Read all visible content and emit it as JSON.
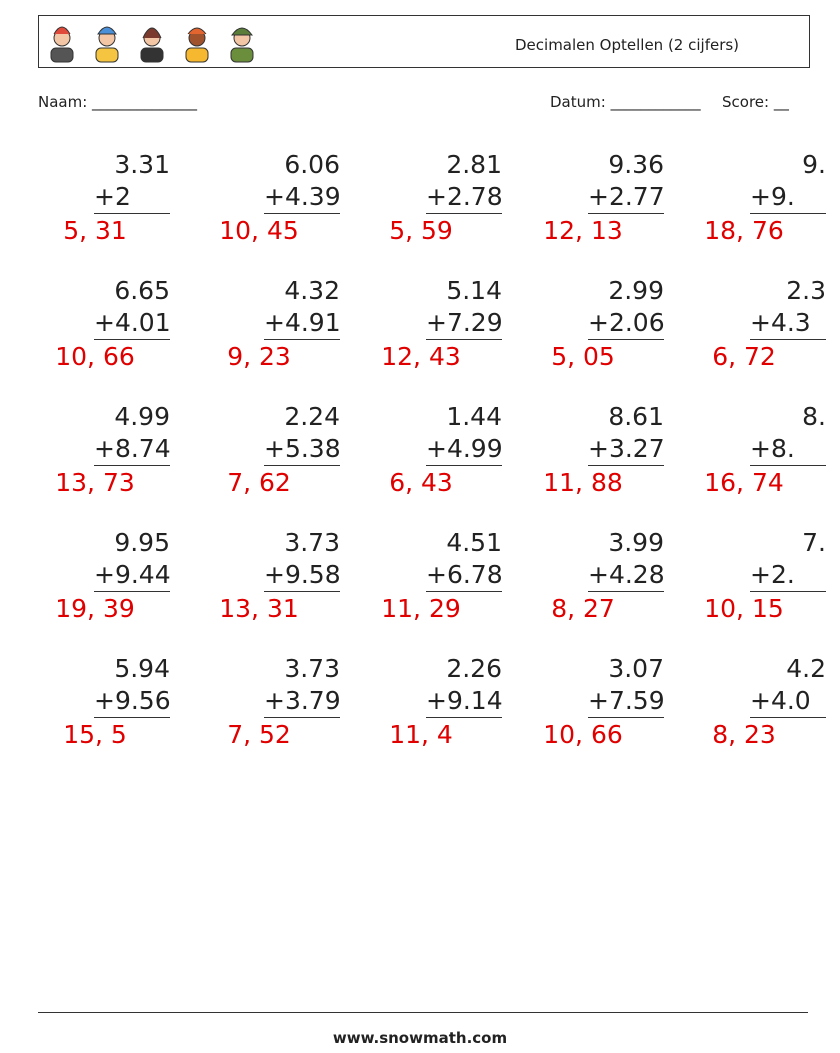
{
  "header": {
    "title": "Decimalen Optellen (2 cijfers)",
    "name_label": "Naam: ______________",
    "date_label": "Datum: ____________",
    "score_label": "Score: __"
  },
  "problems": [
    [
      {
        "top": "3.31",
        "bottom": "+2",
        "answer": "5, 31"
      },
      {
        "top": "6.06",
        "bottom": "+4.39",
        "answer": "10, 45"
      },
      {
        "top": "2.81",
        "bottom": "+2.78",
        "answer": "5, 59"
      },
      {
        "top": "9.36",
        "bottom": "+2.77",
        "answer": "12, 13"
      },
      {
        "top": "9.",
        "bottom": "+9.",
        "answer": "18, 76"
      }
    ],
    [
      {
        "top": "6.65",
        "bottom": "+4.01",
        "answer": "10, 66"
      },
      {
        "top": "4.32",
        "bottom": "+4.91",
        "answer": "9, 23"
      },
      {
        "top": "5.14",
        "bottom": "+7.29",
        "answer": "12, 43"
      },
      {
        "top": "2.99",
        "bottom": "+2.06",
        "answer": "5, 05"
      },
      {
        "top": "2.3",
        "bottom": "+4.3",
        "answer": "6, 72"
      }
    ],
    [
      {
        "top": "4.99",
        "bottom": "+8.74",
        "answer": "13, 73"
      },
      {
        "top": "2.24",
        "bottom": "+5.38",
        "answer": "7, 62"
      },
      {
        "top": "1.44",
        "bottom": "+4.99",
        "answer": "6, 43"
      },
      {
        "top": "8.61",
        "bottom": "+3.27",
        "answer": "11, 88"
      },
      {
        "top": "8.",
        "bottom": "+8.",
        "answer": "16, 74"
      }
    ],
    [
      {
        "top": "9.95",
        "bottom": "+9.44",
        "answer": "19, 39"
      },
      {
        "top": "3.73",
        "bottom": "+9.58",
        "answer": "13, 31"
      },
      {
        "top": "4.51",
        "bottom": "+6.78",
        "answer": "11, 29"
      },
      {
        "top": "3.99",
        "bottom": "+4.28",
        "answer": "8, 27"
      },
      {
        "top": "7.",
        "bottom": "+2.",
        "answer": "10, 15"
      }
    ],
    [
      {
        "top": "5.94",
        "bottom": "+9.56",
        "answer": "15, 5"
      },
      {
        "top": "3.73",
        "bottom": "+3.79",
        "answer": "7, 52"
      },
      {
        "top": "2.26",
        "bottom": "+9.14",
        "answer": "11, 4"
      },
      {
        "top": "3.07",
        "bottom": "+7.59",
        "answer": "10, 66"
      },
      {
        "top": "4.2",
        "bottom": "+4.0",
        "answer": "8, 23"
      }
    ]
  ],
  "footer": {
    "url": "www.snowmath.com"
  }
}
